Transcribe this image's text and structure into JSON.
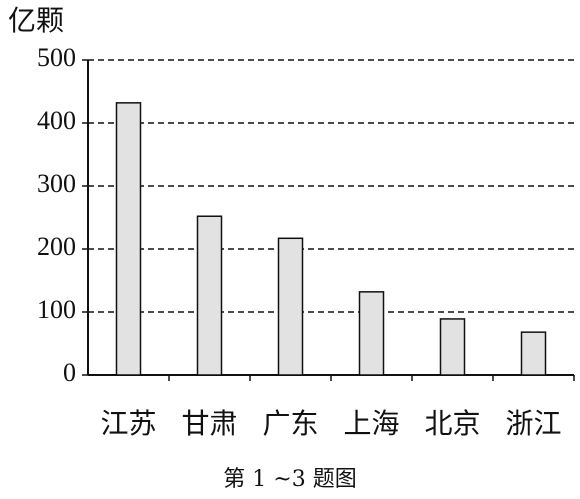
{
  "chart_data": {
    "type": "bar",
    "y_label": "亿颗",
    "caption": "第 1 ~3 题图",
    "categories": [
      "江苏",
      "甘肃",
      "广东",
      "上海",
      "北京",
      "浙江"
    ],
    "values": [
      432,
      252,
      217,
      132,
      89,
      68
    ],
    "color": "#e2e2e2",
    "ylim": [
      0,
      500
    ],
    "yticks": [
      0,
      100,
      200,
      300,
      400,
      500
    ],
    "grid": true
  }
}
